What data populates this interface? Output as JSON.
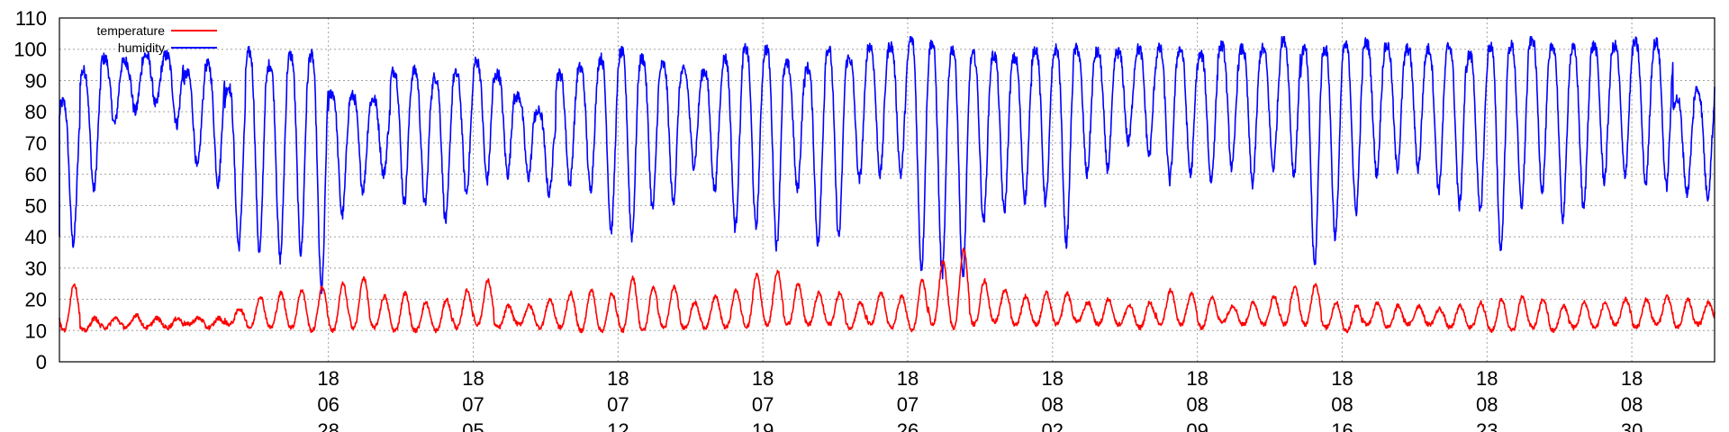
{
  "chart_data": {
    "type": "line",
    "title": "",
    "xlabel": "",
    "ylabel": "",
    "ylim": [
      0,
      110
    ],
    "yticks": [
      0,
      10,
      20,
      30,
      40,
      50,
      60,
      70,
      80,
      90,
      100,
      110
    ],
    "xlim": [
      "2018-06-15",
      "2018-09-03"
    ],
    "xticks": [
      {
        "date": "2018-06-28",
        "label": [
          "18",
          "06",
          "28"
        ]
      },
      {
        "date": "2018-07-05",
        "label": [
          "18",
          "07",
          "05"
        ]
      },
      {
        "date": "2018-07-12",
        "label": [
          "18",
          "07",
          "12"
        ]
      },
      {
        "date": "2018-07-19",
        "label": [
          "18",
          "07",
          "19"
        ]
      },
      {
        "date": "2018-07-26",
        "label": [
          "18",
          "07",
          "26"
        ]
      },
      {
        "date": "2018-08-02",
        "label": [
          "18",
          "08",
          "02"
        ]
      },
      {
        "date": "2018-08-09",
        "label": [
          "18",
          "08",
          "09"
        ]
      },
      {
        "date": "2018-08-16",
        "label": [
          "18",
          "08",
          "16"
        ]
      },
      {
        "date": "2018-08-23",
        "label": [
          "18",
          "08",
          "23"
        ]
      },
      {
        "date": "2018-08-30",
        "label": [
          "18",
          "08",
          "30"
        ]
      }
    ],
    "grid": true,
    "legend_position": "top-left",
    "series": [
      {
        "name": "temperature",
        "color": "#ff0000",
        "x": [
          "2018-06-15",
          "2018-06-16",
          "2018-06-17",
          "2018-06-18",
          "2018-06-19",
          "2018-06-20",
          "2018-06-21",
          "2018-06-22",
          "2018-06-23",
          "2018-06-24",
          "2018-06-25",
          "2018-06-26",
          "2018-06-27",
          "2018-06-28",
          "2018-06-29",
          "2018-06-30",
          "2018-07-01",
          "2018-07-02",
          "2018-07-03",
          "2018-07-04",
          "2018-07-05",
          "2018-07-06",
          "2018-07-07",
          "2018-07-08",
          "2018-07-09",
          "2018-07-10",
          "2018-07-11",
          "2018-07-12",
          "2018-07-13",
          "2018-07-14",
          "2018-07-15",
          "2018-07-16",
          "2018-07-17",
          "2018-07-18",
          "2018-07-19",
          "2018-07-20",
          "2018-07-21",
          "2018-07-22",
          "2018-07-23",
          "2018-07-24",
          "2018-07-25",
          "2018-07-26",
          "2018-07-27",
          "2018-07-28",
          "2018-07-29",
          "2018-07-30",
          "2018-07-31",
          "2018-08-01",
          "2018-08-02",
          "2018-08-03",
          "2018-08-04",
          "2018-08-05",
          "2018-08-06",
          "2018-08-07",
          "2018-08-08",
          "2018-08-09",
          "2018-08-10",
          "2018-08-11",
          "2018-08-12",
          "2018-08-13",
          "2018-08-14",
          "2018-08-15",
          "2018-08-16",
          "2018-08-17",
          "2018-08-18",
          "2018-08-19",
          "2018-08-20",
          "2018-08-21",
          "2018-08-22",
          "2018-08-23",
          "2018-08-24",
          "2018-08-25",
          "2018-08-26",
          "2018-08-27",
          "2018-08-28",
          "2018-08-29",
          "2018-08-30",
          "2018-08-31",
          "2018-09-01",
          "2018-09-02"
        ],
        "min": [
          10,
          10,
          11,
          11,
          11,
          11,
          12,
          11,
          12,
          11,
          11,
          11,
          10,
          10,
          11,
          11,
          10,
          10,
          10,
          11,
          12,
          11,
          12,
          11,
          11,
          10,
          10,
          10,
          10,
          11,
          11,
          11,
          11,
          11,
          12,
          12,
          12,
          12,
          11,
          12,
          11,
          10,
          12,
          11,
          12,
          13,
          12,
          12,
          12,
          13,
          12,
          12,
          11,
          12,
          12,
          11,
          13,
          12,
          12,
          12,
          12,
          11,
          10,
          12,
          11,
          12,
          12,
          11,
          11,
          10,
          10,
          11,
          10,
          11,
          11,
          12,
          11,
          12,
          11,
          12
        ],
        "max": [
          25,
          14,
          14,
          15,
          14,
          14,
          14,
          14,
          17,
          21,
          22,
          23,
          24,
          25,
          27,
          21,
          22,
          19,
          20,
          23,
          26,
          18,
          18,
          20,
          22,
          23,
          22,
          27,
          24,
          24,
          19,
          21,
          23,
          28,
          29,
          25,
          22,
          22,
          19,
          22,
          21,
          26,
          32,
          36,
          26,
          23,
          21,
          22,
          22,
          19,
          20,
          18,
          19,
          23,
          22,
          21,
          18,
          19,
          21,
          24,
          25,
          19,
          18,
          19,
          18,
          18,
          17,
          18,
          19,
          20,
          21,
          20,
          18,
          19,
          19,
          20,
          20,
          21,
          20,
          19
        ],
        "last": 16
      },
      {
        "name": "humidity",
        "color": "#0000ff",
        "x": [
          "2018-06-15",
          "2018-06-16",
          "2018-06-17",
          "2018-06-18",
          "2018-06-19",
          "2018-06-20",
          "2018-06-21",
          "2018-06-22",
          "2018-06-23",
          "2018-06-24",
          "2018-06-25",
          "2018-06-26",
          "2018-06-27",
          "2018-06-28",
          "2018-06-29",
          "2018-06-30",
          "2018-07-01",
          "2018-07-02",
          "2018-07-03",
          "2018-07-04",
          "2018-07-05",
          "2018-07-06",
          "2018-07-07",
          "2018-07-08",
          "2018-07-09",
          "2018-07-10",
          "2018-07-11",
          "2018-07-12",
          "2018-07-13",
          "2018-07-14",
          "2018-07-15",
          "2018-07-16",
          "2018-07-17",
          "2018-07-18",
          "2018-07-19",
          "2018-07-20",
          "2018-07-21",
          "2018-07-22",
          "2018-07-23",
          "2018-07-24",
          "2018-07-25",
          "2018-07-26",
          "2018-07-27",
          "2018-07-28",
          "2018-07-29",
          "2018-07-30",
          "2018-07-31",
          "2018-08-01",
          "2018-08-02",
          "2018-08-03",
          "2018-08-04",
          "2018-08-05",
          "2018-08-06",
          "2018-08-07",
          "2018-08-08",
          "2018-08-09",
          "2018-08-10",
          "2018-08-11",
          "2018-08-12",
          "2018-08-13",
          "2018-08-14",
          "2018-08-15",
          "2018-08-16",
          "2018-08-17",
          "2018-08-18",
          "2018-08-19",
          "2018-08-20",
          "2018-08-21",
          "2018-08-22",
          "2018-08-23",
          "2018-08-24",
          "2018-08-25",
          "2018-08-26",
          "2018-08-27",
          "2018-08-28",
          "2018-08-29",
          "2018-08-30",
          "2018-08-31",
          "2018-09-01",
          "2018-09-02"
        ],
        "max": [
          83,
          93,
          97,
          96,
          98,
          98,
          92,
          95,
          88,
          99,
          95,
          98,
          98,
          86,
          85,
          84,
          93,
          93,
          91,
          92,
          96,
          92,
          85,
          80,
          92,
          94,
          97,
          99,
          97,
          95,
          93,
          93,
          97,
          100,
          100,
          95,
          94,
          100,
          97,
          101,
          101,
          103,
          102,
          100,
          98,
          98,
          97,
          100,
          100,
          100,
          99,
          99,
          100,
          100,
          100,
          98,
          101,
          100,
          100,
          103,
          100,
          100,
          101,
          102,
          101,
          100,
          100,
          101,
          98,
          101,
          101,
          103,
          101,
          100,
          101,
          101,
          102,
          102,
          84,
          87
        ],
        "min": [
          38,
          55,
          76,
          80,
          82,
          76,
          62,
          57,
          37,
          35,
          33,
          35,
          23,
          47,
          55,
          60,
          51,
          50,
          45,
          54,
          58,
          60,
          59,
          54,
          57,
          55,
          42,
          40,
          49,
          51,
          63,
          55,
          43,
          43,
          37,
          55,
          38,
          40,
          58,
          60,
          60,
          30,
          28,
          27,
          45,
          48,
          52,
          51,
          38,
          60,
          62,
          70,
          66,
          58,
          60,
          58,
          62,
          57,
          62,
          60,
          31,
          40,
          48,
          60,
          62,
          62,
          55,
          50,
          48,
          36,
          50,
          55,
          46,
          49,
          58,
          60,
          57,
          56,
          54,
          53
        ],
        "first": 40,
        "last": 88
      }
    ]
  }
}
